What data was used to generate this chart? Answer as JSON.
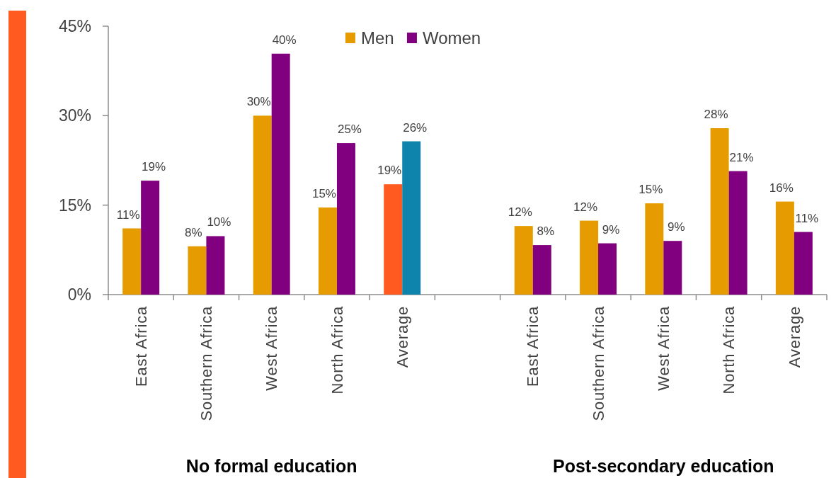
{
  "chart_data": {
    "type": "bar",
    "categories": [
      "East Africa",
      "Southern Africa",
      "West Africa",
      "North Africa",
      "Average",
      null,
      "East Africa",
      "Southern Africa",
      "West Africa",
      "North Africa",
      "Average"
    ],
    "series": [
      {
        "name": "Men",
        "color": "#e69c00",
        "colors": [
          "#e69c00",
          "#e69c00",
          "#e69c00",
          "#e69c00",
          "#ff5a1f",
          null,
          "#e69c00",
          "#e69c00",
          "#e69c00",
          "#e69c00",
          "#e69c00"
        ],
        "values": [
          11.1,
          8.1,
          30.0,
          14.6,
          18.5,
          null,
          11.5,
          12.4,
          15.3,
          27.9,
          15.6
        ],
        "value_labels": [
          "11%",
          "8%",
          "30%",
          "15%",
          "19%",
          null,
          "12%",
          "12%",
          "15%",
          "28%",
          "16%"
        ]
      },
      {
        "name": "Women",
        "color": "#800080",
        "colors": [
          "#800080",
          "#800080",
          "#800080",
          "#800080",
          "#0e84ad",
          null,
          "#800080",
          "#800080",
          "#800080",
          "#800080",
          "#800080"
        ],
        "values": [
          19.1,
          9.8,
          40.4,
          25.4,
          25.7,
          null,
          8.3,
          8.6,
          9.0,
          20.7,
          10.5
        ],
        "value_labels": [
          "19%",
          "10%",
          "40%",
          "25%",
          "26%",
          null,
          "8%",
          "9%",
          "9%",
          "21%",
          "11%"
        ]
      }
    ],
    "ylim": [
      0,
      45
    ],
    "yticks": [
      {
        "value": 0,
        "label": "0%"
      },
      {
        "value": 15,
        "label": "15%"
      },
      {
        "value": 30,
        "label": "30%"
      },
      {
        "value": 45,
        "label": "45%"
      }
    ],
    "legend": "top",
    "annotations": [
      "No formal education",
      "Post-secondary education"
    ]
  }
}
